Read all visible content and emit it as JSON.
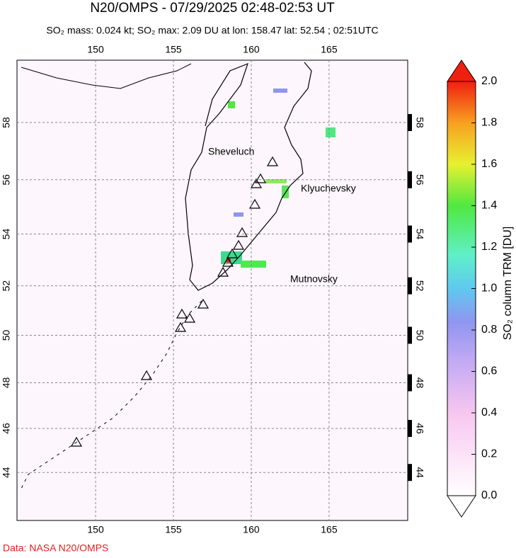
{
  "header": {
    "title": "N20/OMPS - 07/29/2025 02:48-02:53 UT",
    "subtitle": "SO₂ mass: 0.024 kt; SO₂ max: 2.09 DU at lon: 158.47 lat: 52.54 ; 02:51UTC"
  },
  "map": {
    "lonlim": [
      144.95,
      170.05
    ],
    "latlim": [
      41.74,
      60.06
    ],
    "lon_ticks": [
      150,
      155,
      160,
      165
    ],
    "lat_ticks": [
      44,
      46,
      48,
      50,
      52,
      54,
      56,
      58
    ],
    "volcano_labels": [
      "Sheveluch",
      "Klyuchevsky",
      "Mutnovsky"
    ]
  },
  "colorbar": {
    "label": "SO₂ column TRM [DU]",
    "lim": [
      0,
      2
    ],
    "ticks": [
      {
        "value": 0,
        "label": "0.0"
      },
      {
        "value": 0.2,
        "label": "0.2"
      },
      {
        "value": 0.4,
        "label": "0.4"
      },
      {
        "value": 0.6,
        "label": "0.6"
      },
      {
        "value": 0.8,
        "label": "0.8"
      },
      {
        "value": 1,
        "label": "1.0"
      },
      {
        "value": 1.2,
        "label": "1.2"
      },
      {
        "value": 1.4,
        "label": "1.4"
      },
      {
        "value": 1.6,
        "label": "1.6"
      },
      {
        "value": 1.8,
        "label": "1.8"
      },
      {
        "value": 2,
        "label": "2.0"
      }
    ]
  },
  "footer": {
    "credit": "Data: NASA N20/OMPS"
  }
}
